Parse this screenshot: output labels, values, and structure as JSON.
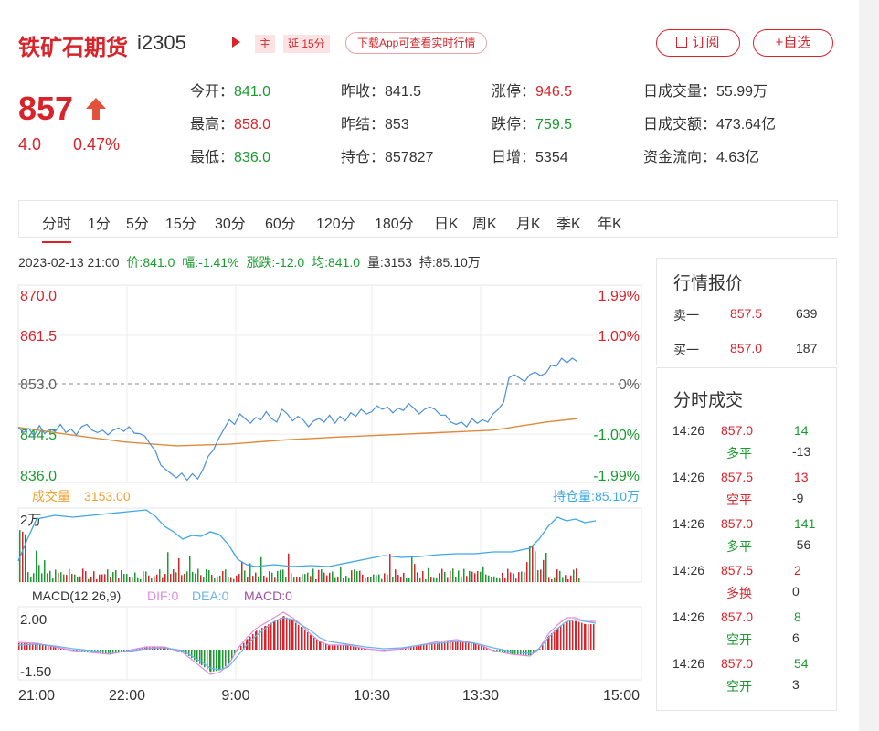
{
  "header": {
    "title": "铁矿石期货",
    "code": "i2305",
    "tag_main": "主",
    "tag_delay": "延 15分",
    "download_text": "下载App可查看实时行情",
    "subscribe_label": "订阅",
    "favorite_label": "+自选"
  },
  "quote_main": {
    "price": "857",
    "change": "4.0",
    "change_pct": "0.47%"
  },
  "stats": [
    {
      "label": "今开：",
      "value": "841.0",
      "color": "green"
    },
    {
      "label": "昨收：",
      "value": "841.5",
      "color": "normal"
    },
    {
      "label": "涨停：",
      "value": "946.5",
      "color": "red"
    },
    {
      "label": "日成交量：",
      "value": "55.99万",
      "color": "normal"
    },
    {
      "label": "最高：",
      "value": "858.0",
      "color": "red"
    },
    {
      "label": "昨结：",
      "value": "853",
      "color": "normal"
    },
    {
      "label": "跌停：",
      "value": "759.5",
      "color": "green"
    },
    {
      "label": "日成交额：",
      "value": "473.64亿",
      "color": "normal"
    },
    {
      "label": "最低：",
      "value": "836.0",
      "color": "green"
    },
    {
      "label": "持仓：",
      "value": "857827",
      "color": "normal"
    },
    {
      "label": "日增：",
      "value": "5354",
      "color": "normal"
    },
    {
      "label": "资金流向：",
      "value": "4.63亿",
      "color": "normal"
    }
  ],
  "tabs": [
    "分时",
    "1分",
    "5分",
    "15分",
    "30分",
    "60分",
    "120分",
    "180分",
    "日K",
    "周K",
    "月K",
    "季K",
    "年K"
  ],
  "active_tab": 0,
  "infoline": {
    "datetime": "2023-02-13 21:00",
    "price": "价:841.0",
    "amp": "幅:-1.41%",
    "chg": "涨跌:-12.0",
    "avg": "均:841.0",
    "vol": "量:3153",
    "oi": "持:85.10万"
  },
  "chart_data": {
    "type": "line",
    "price_axis": [
      "870.0",
      "861.5",
      "853.0",
      "844.5",
      "836.0"
    ],
    "pct_axis": [
      "1.99%",
      "1.00%",
      "0%",
      "-1.00%",
      "-1.99%"
    ],
    "ylim": [
      836.0,
      870.0
    ],
    "prev_settle": 853.0,
    "x_ticks": [
      "21:00",
      "22:00",
      "9:00",
      "10:30",
      "13:30",
      "15:00"
    ],
    "vol_label": "成交量",
    "vol_value": "3153.00",
    "oi_label": "持仓量:85.10万",
    "vol_axis": "2万",
    "macd_label": "MACD(12,26,9)",
    "dif_label": "DIF:0",
    "dea_label": "DEA:0",
    "macd_value_label": "MACD:0",
    "macd_axis": [
      "2.00",
      "-1.50"
    ],
    "price_series": [
      [
        0,
        845.5
      ],
      [
        4,
        844.6
      ],
      [
        8,
        845.3
      ],
      [
        12,
        844.0
      ],
      [
        16,
        845.8
      ],
      [
        20,
        844.4
      ],
      [
        24,
        845.2
      ],
      [
        28,
        844.8
      ],
      [
        32,
        846.0
      ],
      [
        36,
        844.6
      ],
      [
        40,
        845.2
      ],
      [
        44,
        844.2
      ],
      [
        48,
        845.6
      ],
      [
        52,
        846.0
      ],
      [
        56,
        845.0
      ],
      [
        60,
        844.6
      ],
      [
        64,
        845.0
      ],
      [
        68,
        844.2
      ],
      [
        72,
        845.0
      ],
      [
        76,
        845.4
      ],
      [
        80,
        844.8
      ],
      [
        84,
        845.6
      ],
      [
        88,
        844.5
      ],
      [
        92,
        844.4
      ],
      [
        96,
        844.0
      ],
      [
        100,
        842.6
      ],
      [
        104,
        841.4
      ],
      [
        108,
        839.0
      ],
      [
        112,
        838.2
      ],
      [
        116,
        837.5
      ],
      [
        120,
        836.8
      ],
      [
        124,
        837.6
      ],
      [
        128,
        836.4
      ],
      [
        132,
        837.5
      ],
      [
        136,
        836.6
      ],
      [
        140,
        838.2
      ],
      [
        144,
        840.5
      ],
      [
        148,
        841.6
      ],
      [
        152,
        843.6
      ],
      [
        156,
        845.2
      ],
      [
        160,
        846.8
      ],
      [
        164,
        846.0
      ],
      [
        168,
        847.8
      ],
      [
        172,
        847.0
      ],
      [
        176,
        846.2
      ],
      [
        180,
        847.2
      ],
      [
        184,
        846.8
      ],
      [
        188,
        848.2
      ],
      [
        192,
        847.0
      ],
      [
        196,
        846.4
      ],
      [
        200,
        848.6
      ],
      [
        204,
        847.8
      ],
      [
        208,
        846.6
      ],
      [
        212,
        847.4
      ],
      [
        216,
        846.8
      ],
      [
        220,
        845.6
      ],
      [
        224,
        846.6
      ],
      [
        228,
        847.0
      ],
      [
        232,
        846.4
      ],
      [
        236,
        847.6
      ],
      [
        240,
        846.2
      ],
      [
        244,
        847.4
      ],
      [
        248,
        846.6
      ],
      [
        252,
        848.0
      ],
      [
        256,
        847.4
      ],
      [
        260,
        848.6
      ],
      [
        264,
        847.8
      ],
      [
        268,
        848.2
      ],
      [
        272,
        849.2
      ],
      [
        276,
        848.6
      ],
      [
        280,
        849.0
      ],
      [
        284,
        848.0
      ],
      [
        288,
        848.8
      ],
      [
        292,
        848.4
      ],
      [
        296,
        849.6
      ],
      [
        300,
        848.8
      ],
      [
        304,
        847.8
      ],
      [
        308,
        848.6
      ],
      [
        312,
        849.0
      ],
      [
        316,
        848.6
      ],
      [
        320,
        847.6
      ],
      [
        324,
        847.6
      ],
      [
        328,
        846.4
      ],
      [
        332,
        846.0
      ],
      [
        336,
        846.4
      ],
      [
        340,
        845.6
      ],
      [
        344,
        847.0
      ],
      [
        348,
        846.2
      ],
      [
        352,
        846.8
      ],
      [
        356,
        846.4
      ],
      [
        360,
        847.8
      ],
      [
        364,
        848.6
      ],
      [
        368,
        849.8
      ],
      [
        372,
        854.0
      ],
      [
        376,
        854.6
      ],
      [
        380,
        854.0
      ],
      [
        384,
        853.4
      ],
      [
        388,
        854.6
      ],
      [
        392,
        855.0
      ],
      [
        396,
        854.4
      ],
      [
        400,
        854.8
      ],
      [
        404,
        856.2
      ],
      [
        408,
        856.0
      ],
      [
        412,
        857.4
      ],
      [
        416,
        856.6
      ],
      [
        420,
        857.4
      ],
      [
        424,
        856.8
      ]
    ],
    "avg_series": [
      [
        0,
        845.5
      ],
      [
        40,
        844.2
      ],
      [
        80,
        843.0
      ],
      [
        120,
        842.3
      ],
      [
        160,
        842.6
      ],
      [
        200,
        843.3
      ],
      [
        240,
        843.8
      ],
      [
        280,
        844.2
      ],
      [
        320,
        844.6
      ],
      [
        360,
        845.0
      ],
      [
        400,
        846.4
      ],
      [
        424,
        847.0
      ]
    ],
    "oi_series": [
      [
        0,
        614
      ],
      [
        10,
        590
      ],
      [
        20,
        568
      ],
      [
        40,
        564
      ],
      [
        60,
        566
      ],
      [
        80,
        564
      ],
      [
        100,
        562
      ],
      [
        120,
        560
      ],
      [
        140,
        558
      ],
      [
        150,
        565
      ],
      [
        160,
        576
      ],
      [
        170,
        582
      ],
      [
        180,
        590
      ],
      [
        190,
        586
      ],
      [
        200,
        587
      ],
      [
        210,
        582
      ],
      [
        220,
        585
      ],
      [
        230,
        596
      ],
      [
        240,
        612
      ],
      [
        250,
        618
      ],
      [
        260,
        620
      ],
      [
        280,
        618
      ],
      [
        300,
        620
      ],
      [
        320,
        619
      ],
      [
        340,
        620
      ],
      [
        360,
        616
      ],
      [
        380,
        612
      ],
      [
        400,
        608
      ],
      [
        420,
        610
      ],
      [
        440,
        609
      ],
      [
        460,
        607
      ],
      [
        480,
        606
      ],
      [
        500,
        606
      ],
      [
        520,
        604
      ],
      [
        540,
        604
      ],
      [
        560,
        600
      ],
      [
        570,
        590
      ],
      [
        580,
        576
      ],
      [
        590,
        566
      ],
      [
        600,
        570
      ],
      [
        610,
        568
      ],
      [
        620,
        572
      ],
      [
        632,
        570
      ]
    ],
    "macd_dif": [
      [
        0,
        703
      ],
      [
        20,
        704
      ],
      [
        40,
        708
      ],
      [
        60,
        712
      ],
      [
        80,
        714
      ],
      [
        100,
        716
      ],
      [
        120,
        712
      ],
      [
        140,
        708
      ],
      [
        160,
        708
      ],
      [
        180,
        714
      ],
      [
        200,
        730
      ],
      [
        210,
        738
      ],
      [
        220,
        736
      ],
      [
        230,
        728
      ],
      [
        240,
        710
      ],
      [
        250,
        698
      ],
      [
        260,
        688
      ],
      [
        270,
        682
      ],
      [
        280,
        676
      ],
      [
        290,
        670
      ],
      [
        300,
        676
      ],
      [
        310,
        684
      ],
      [
        320,
        694
      ],
      [
        330,
        702
      ],
      [
        340,
        706
      ],
      [
        360,
        706
      ],
      [
        380,
        710
      ],
      [
        400,
        712
      ],
      [
        420,
        710
      ],
      [
        440,
        706
      ],
      [
        460,
        702
      ],
      [
        480,
        700
      ],
      [
        500,
        704
      ],
      [
        520,
        712
      ],
      [
        540,
        716
      ],
      [
        560,
        718
      ],
      [
        570,
        710
      ],
      [
        580,
        694
      ],
      [
        590,
        684
      ],
      [
        600,
        676
      ],
      [
        610,
        676
      ],
      [
        620,
        680
      ],
      [
        632,
        680
      ]
    ],
    "macd_dea": [
      [
        0,
        706
      ],
      [
        20,
        705
      ],
      [
        40,
        707
      ],
      [
        60,
        710
      ],
      [
        80,
        712
      ],
      [
        100,
        714
      ],
      [
        120,
        713
      ],
      [
        140,
        710
      ],
      [
        160,
        709
      ],
      [
        180,
        712
      ],
      [
        200,
        724
      ],
      [
        210,
        731
      ],
      [
        220,
        733
      ],
      [
        230,
        730
      ],
      [
        240,
        718
      ],
      [
        250,
        706
      ],
      [
        260,
        696
      ],
      [
        270,
        688
      ],
      [
        280,
        680
      ],
      [
        290,
        676
      ],
      [
        300,
        678
      ],
      [
        310,
        684
      ],
      [
        320,
        690
      ],
      [
        330,
        698
      ],
      [
        340,
        702
      ],
      [
        360,
        705
      ],
      [
        380,
        708
      ],
      [
        400,
        710
      ],
      [
        420,
        709
      ],
      [
        440,
        706
      ],
      [
        460,
        704
      ],
      [
        480,
        702
      ],
      [
        500,
        704
      ],
      [
        520,
        709
      ],
      [
        540,
        713
      ],
      [
        560,
        715
      ],
      [
        570,
        710
      ],
      [
        580,
        698
      ],
      [
        590,
        688
      ],
      [
        600,
        680
      ],
      [
        610,
        678
      ],
      [
        620,
        680
      ],
      [
        632,
        682
      ]
    ]
  },
  "quote_panel": {
    "title": "行情报价",
    "ask_label": "卖一",
    "ask_price": "857.5",
    "ask_vol": "639",
    "bid_label": "买一",
    "bid_price": "857.0",
    "bid_vol": "187"
  },
  "trades": {
    "title": "分时成交",
    "rows": [
      {
        "time": "14:26",
        "price": "857.0",
        "vol": "14",
        "type": "多平",
        "oi": "-13",
        "price_color": "red",
        "vol_color": "green",
        "type_color": "green"
      },
      {
        "time": "14:26",
        "price": "857.5",
        "vol": "13",
        "type": "空平",
        "oi": "-9",
        "price_color": "red",
        "vol_color": "red",
        "type_color": "red"
      },
      {
        "time": "14:26",
        "price": "857.0",
        "vol": "141",
        "type": "多平",
        "oi": "-56",
        "price_color": "red",
        "vol_color": "green",
        "type_color": "green"
      },
      {
        "time": "14:26",
        "price": "857.5",
        "vol": "2",
        "type": "多换",
        "oi": "0",
        "price_color": "red",
        "vol_color": "red",
        "type_color": "red"
      },
      {
        "time": "14:26",
        "price": "857.0",
        "vol": "8",
        "type": "空开",
        "oi": "6",
        "price_color": "red",
        "vol_color": "green",
        "type_color": "green"
      },
      {
        "time": "14:26",
        "price": "857.0",
        "vol": "54",
        "type": "空开",
        "oi": "3",
        "price_color": "red",
        "vol_color": "green",
        "type_color": "green"
      }
    ]
  },
  "colors": {
    "red": "#d8232a",
    "green": "#1a9a2f",
    "blue": "#3ea7e6",
    "avg": "#e08a3c"
  }
}
